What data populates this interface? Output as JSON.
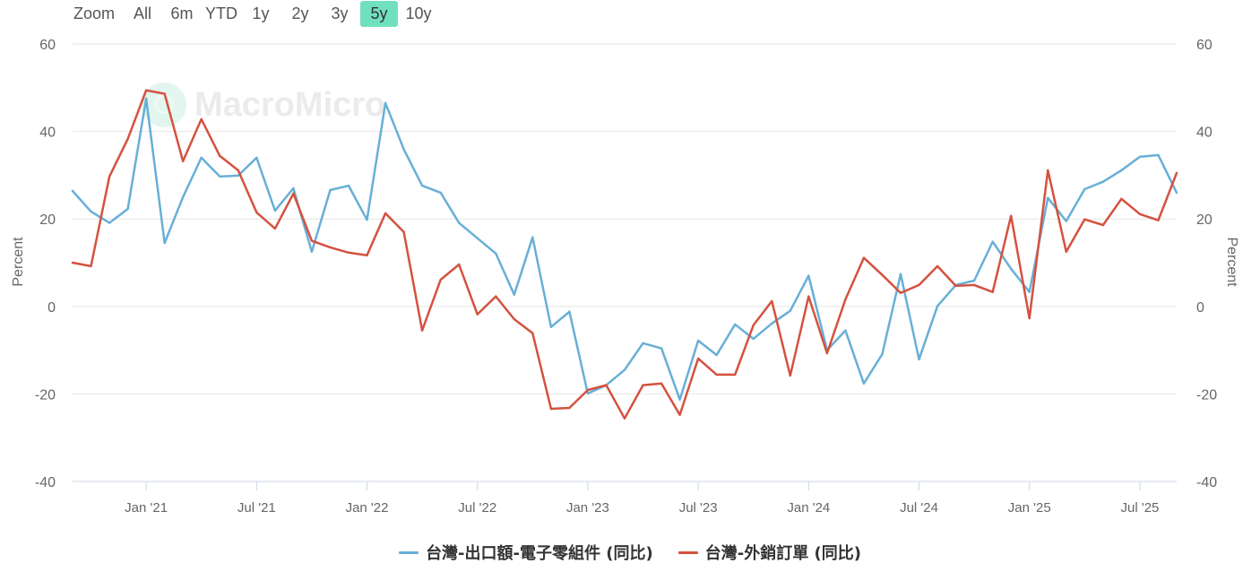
{
  "zoom": {
    "label": "Zoom",
    "buttons": [
      {
        "label": "All",
        "selected": false
      },
      {
        "label": "6m",
        "selected": false
      },
      {
        "label": "YTD",
        "selected": false
      },
      {
        "label": "1y",
        "selected": false
      },
      {
        "label": "2y",
        "selected": false
      },
      {
        "label": "3y",
        "selected": false
      },
      {
        "label": "5y",
        "selected": true
      },
      {
        "label": "10y",
        "selected": false
      }
    ]
  },
  "watermark": "MacroMicro",
  "colors": {
    "accent": "#70e0bf"
  },
  "chart_data": {
    "type": "line",
    "x": [
      "2020-09",
      "2020-10",
      "2020-11",
      "2020-12",
      "2021-01",
      "2021-02",
      "2021-03",
      "2021-04",
      "2021-05",
      "2021-06",
      "2021-07",
      "2021-08",
      "2021-09",
      "2021-10",
      "2021-11",
      "2021-12",
      "2022-01",
      "2022-02",
      "2022-03",
      "2022-04",
      "2022-05",
      "2022-06",
      "2022-07",
      "2022-08",
      "2022-09",
      "2022-10",
      "2022-11",
      "2022-12",
      "2023-01",
      "2023-02",
      "2023-03",
      "2023-04",
      "2023-05",
      "2023-06",
      "2023-07",
      "2023-08",
      "2023-09",
      "2023-10",
      "2023-11",
      "2023-12",
      "2024-01",
      "2024-02",
      "2024-03",
      "2024-04",
      "2024-05",
      "2024-06",
      "2024-07",
      "2024-08",
      "2024-09",
      "2024-10",
      "2024-11",
      "2024-12",
      "2025-01",
      "2025-02",
      "2025-03",
      "2025-04",
      "2025-05",
      "2025-06",
      "2025-07",
      "2025-08",
      "2025-09"
    ],
    "xlim": [
      "2020-09",
      "2025-09"
    ],
    "xticks": [
      {
        "date": "2021-01",
        "label": "Jan '21"
      },
      {
        "date": "2021-07",
        "label": "Jul '21"
      },
      {
        "date": "2022-01",
        "label": "Jan '22"
      },
      {
        "date": "2022-07",
        "label": "Jul '22"
      },
      {
        "date": "2023-01",
        "label": "Jan '23"
      },
      {
        "date": "2023-07",
        "label": "Jul '23"
      },
      {
        "date": "2024-01",
        "label": "Jan '24"
      },
      {
        "date": "2024-07",
        "label": "Jul '24"
      },
      {
        "date": "2025-01",
        "label": "Jan '25"
      },
      {
        "date": "2025-07",
        "label": "Jul '25"
      }
    ],
    "ylim": [
      -40,
      60
    ],
    "yticks": [
      60,
      40,
      20,
      0,
      -20,
      -40
    ],
    "ylabel": "Percent",
    "ylabel_right": "Percent",
    "grid": true,
    "legend": "bottom",
    "series": [
      {
        "name": "台灣-出口額-電子零組件 (同比)",
        "color": "#68afd7",
        "values": [
          26.4,
          21.7,
          19.1,
          22.3,
          47.5,
          14.5,
          25.0,
          34.0,
          29.7,
          29.9,
          34.0,
          21.9,
          27.0,
          12.5,
          26.6,
          27.6,
          19.8,
          46.5,
          35.9,
          27.6,
          26.0,
          19.1,
          15.6,
          12.1,
          2.7,
          15.8,
          -4.7,
          -1.2,
          -19.9,
          -18.0,
          -14.5,
          -8.4,
          -9.6,
          -21.3,
          -7.8,
          -11.1,
          -4.1,
          -7.4,
          -3.9,
          -1.0,
          7.0,
          -10.0,
          -5.5,
          -17.6,
          -10.9,
          7.4,
          -12.1,
          0.1,
          4.9,
          5.9,
          14.8,
          8.6,
          3.3,
          24.8,
          19.5,
          26.8,
          28.5,
          31.1,
          34.2,
          34.6,
          26.0
        ]
      },
      {
        "name": "台灣-外銷訂單 (同比)",
        "color": "#d4523f",
        "values": [
          10.0,
          9.2,
          29.7,
          38.3,
          49.4,
          48.6,
          33.2,
          42.8,
          34.4,
          31.1,
          21.5,
          17.8,
          25.8,
          15.0,
          13.5,
          12.3,
          11.7,
          21.3,
          17.0,
          -5.5,
          6.1,
          9.6,
          -1.8,
          2.3,
          -2.9,
          -6.1,
          -23.4,
          -23.2,
          -19.1,
          -18.0,
          -25.6,
          -18.0,
          -17.6,
          -24.8,
          -11.9,
          -15.6,
          -15.6,
          -4.3,
          1.2,
          -15.8,
          2.3,
          -10.7,
          1.6,
          11.1,
          7.2,
          3.1,
          4.9,
          9.2,
          4.7,
          4.9,
          3.3,
          20.7,
          -2.7,
          31.1,
          12.5,
          19.9,
          18.6,
          24.6,
          21.1,
          19.7,
          30.5
        ]
      }
    ]
  }
}
